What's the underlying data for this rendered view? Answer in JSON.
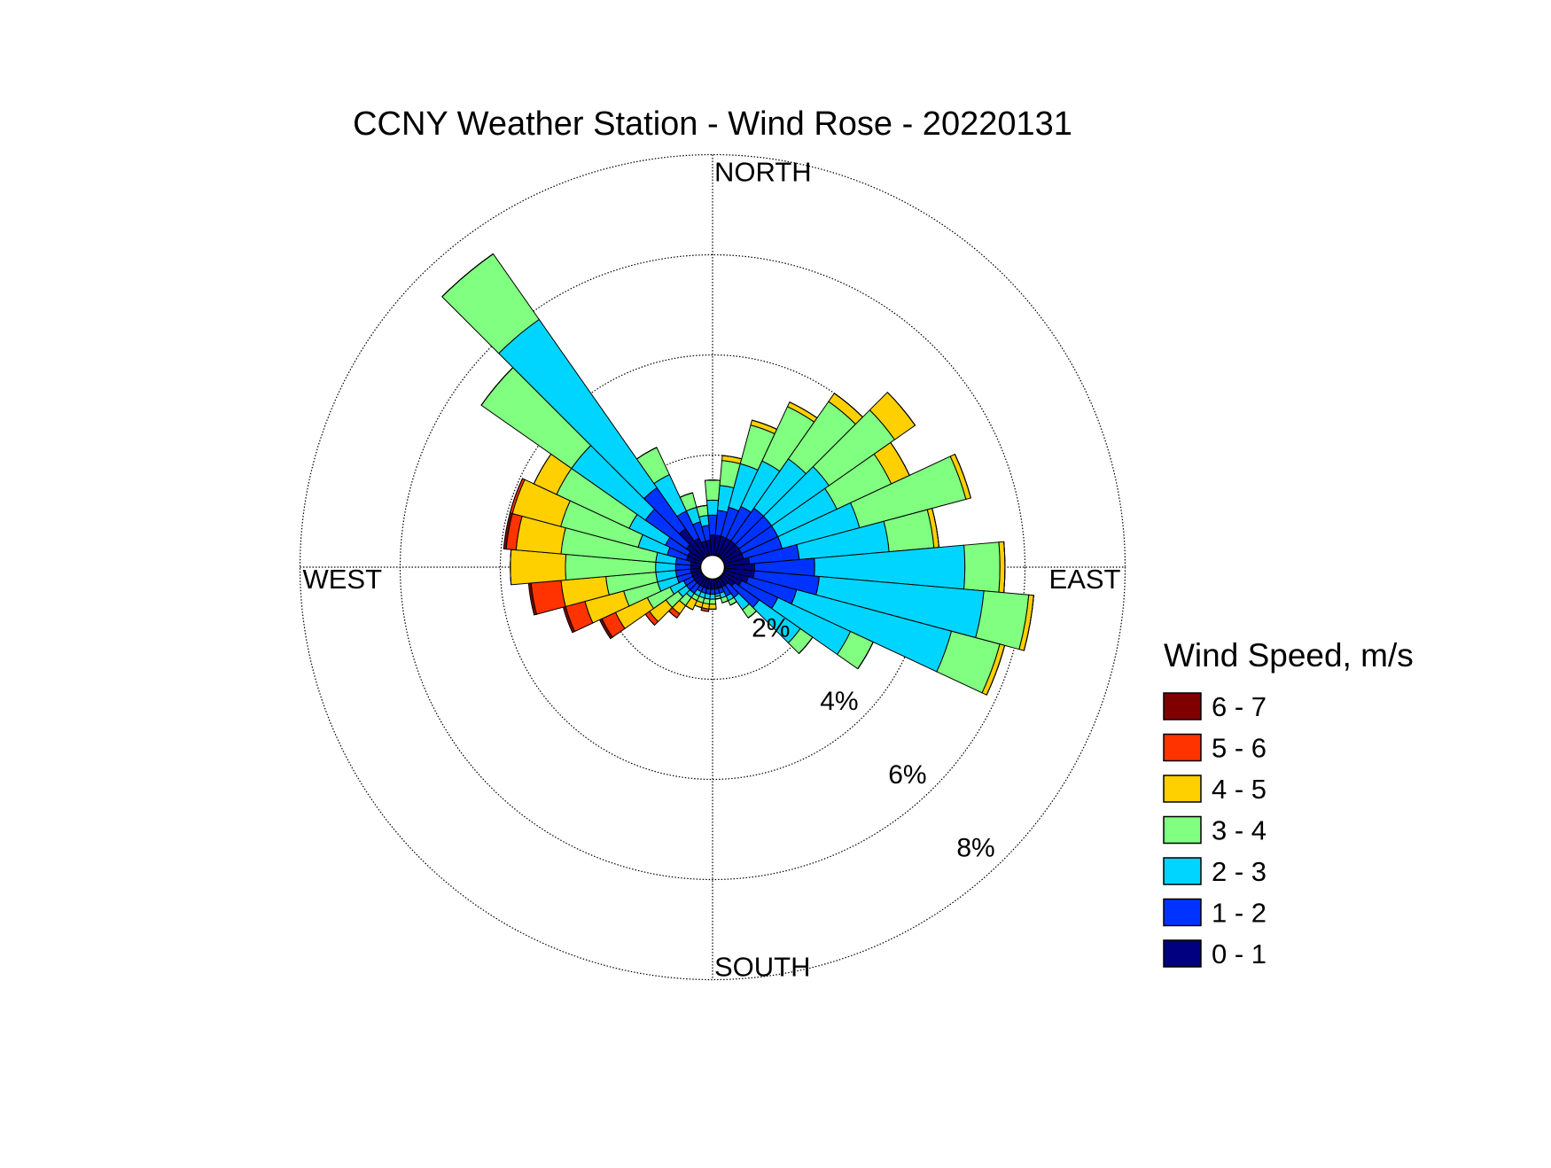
{
  "chart_data": {
    "type": "windrose",
    "title": "CCNY Weather Station - Wind Rose - 20220131",
    "direction_labels": [
      "NORTH",
      "EAST",
      "SOUTH",
      "WEST"
    ],
    "directions": [
      0,
      10,
      20,
      30,
      40,
      50,
      60,
      70,
      80,
      90,
      100,
      110,
      120,
      130,
      140,
      150,
      160,
      170,
      180,
      190,
      200,
      210,
      220,
      230,
      240,
      250,
      260,
      270,
      280,
      290,
      300,
      310,
      320,
      330,
      340,
      350
    ],
    "rlim": [
      0,
      8
    ],
    "rticks": [
      {
        "value": 2,
        "label": "2%"
      },
      {
        "value": 4,
        "label": "4%"
      },
      {
        "value": 6,
        "label": "6%"
      },
      {
        "value": 8,
        "label": "8%"
      }
    ],
    "grid": true,
    "legend_title": "Wind Speed, m/s",
    "series": [
      {
        "name": "0 - 1",
        "color": "#000080",
        "values": [
          0.4,
          0.4,
          0.4,
          0.4,
          0.4,
          0.4,
          0.4,
          0.4,
          0.5,
          0.6,
          0.6,
          0.5,
          0.4,
          0.3,
          0.2,
          0.2,
          0.2,
          0.2,
          0.2,
          0.2,
          0.2,
          0.2,
          0.2,
          0.2,
          0.2,
          0.2,
          0.2,
          0.2,
          0.2,
          0.3,
          0.3,
          0.4,
          0.7,
          0.4,
          0.3,
          0.3
        ]
      },
      {
        "name": "1 - 2",
        "color": "#0033ff",
        "values": [
          0.4,
          0.5,
          0.6,
          0.7,
          0.8,
          0.8,
          0.8,
          0.8,
          1.0,
          1.2,
          1.3,
          1.0,
          0.8,
          0.6,
          0.3,
          0.2,
          0.1,
          0.1,
          0.1,
          0.1,
          0.1,
          0.1,
          0.2,
          0.2,
          0.2,
          0.3,
          0.3,
          0.3,
          0.3,
          0.4,
          0.5,
          1.0,
          1.0,
          0.6,
          0.4,
          0.3
        ]
      },
      {
        "name": "2 - 3",
        "color": "#00d5ff",
        "values": [
          0.3,
          0.5,
          0.9,
          1.0,
          1.2,
          1.4,
          1.3,
          1.6,
          1.8,
          3.0,
          3.3,
          3.2,
          1.6,
          1.0,
          0.3,
          0.1,
          0.1,
          0.05,
          0.1,
          0.1,
          0.1,
          0.1,
          0.1,
          0.2,
          0.3,
          0.4,
          0.4,
          0.4,
          0.4,
          0.6,
          0.8,
          1.8,
          4.1,
          0.8,
          0.3,
          0.2
        ]
      },
      {
        "name": "3 - 4",
        "color": "#80ff80",
        "values": [
          0.4,
          0.5,
          0.8,
          1.2,
          1.4,
          1.6,
          1.2,
          2.2,
          0.9,
          0.7,
          0.9,
          1.0,
          0.5,
          0.3,
          0.2,
          0.1,
          0.1,
          0.05,
          0.1,
          0.1,
          0.1,
          0.1,
          0.2,
          0.3,
          0.5,
          0.7,
          1.0,
          1.8,
          1.9,
          1.6,
          1.6,
          2.2,
          1.6,
          0.6,
          0.3,
          0.2
        ]
      },
      {
        "name": "4 - 5",
        "color": "#ffd000",
        "values": [
          0,
          0.1,
          0.1,
          0.1,
          0.2,
          0.5,
          0.4,
          0.1,
          0.1,
          0.1,
          0.1,
          0.1,
          0,
          0,
          0,
          0,
          0,
          0,
          0.1,
          0.1,
          0.1,
          0.2,
          0.2,
          0.4,
          0.7,
          0.8,
          0.9,
          1.1,
          0.9,
          1.0,
          0.5,
          0,
          0,
          0,
          0,
          0
        ]
      },
      {
        "name": "5 - 6",
        "color": "#ff3300",
        "values": [
          0,
          0,
          0,
          0,
          0,
          0,
          0,
          0,
          0,
          0,
          0,
          0,
          0,
          0,
          0,
          0,
          0,
          0,
          0,
          0.05,
          0,
          0,
          0.1,
          0.1,
          0.3,
          0.4,
          0.6,
          0,
          0.2,
          0.05,
          0,
          0,
          0,
          0,
          0,
          0
        ]
      },
      {
        "name": "6 - 7",
        "color": "#800000",
        "values": [
          0,
          0,
          0,
          0,
          0,
          0,
          0,
          0,
          0,
          0,
          0,
          0,
          0,
          0,
          0,
          0,
          0,
          0,
          0,
          0,
          0,
          0,
          0,
          0,
          0.05,
          0.05,
          0.05,
          0,
          0.05,
          0,
          0,
          0,
          0,
          0,
          0,
          0
        ]
      }
    ]
  }
}
